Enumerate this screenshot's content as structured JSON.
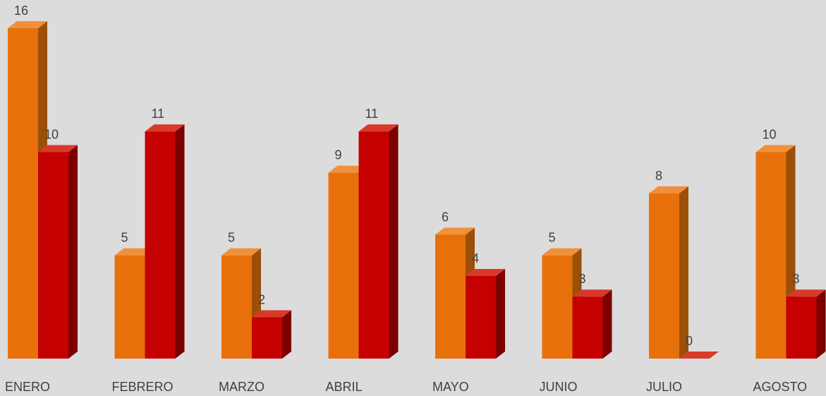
{
  "chart_data": {
    "type": "bar3d",
    "categories": [
      "ENERO",
      "FEBRERO",
      "MARZO",
      "ABRIL",
      "MAYO",
      "JUNIO",
      "JULIO",
      "AGOSTO"
    ],
    "series": [
      {
        "color": "#e8700a",
        "side": "#9c4f08",
        "top": "#f0903a",
        "values": [
          16,
          5,
          5,
          9,
          6,
          5,
          8,
          10
        ]
      },
      {
        "color": "#c40000",
        "side": "#7c0000",
        "top": "#d83a2a",
        "values": [
          10,
          11,
          2,
          11,
          4,
          3,
          0,
          3
        ]
      }
    ],
    "ylim": [
      0,
      16
    ]
  }
}
